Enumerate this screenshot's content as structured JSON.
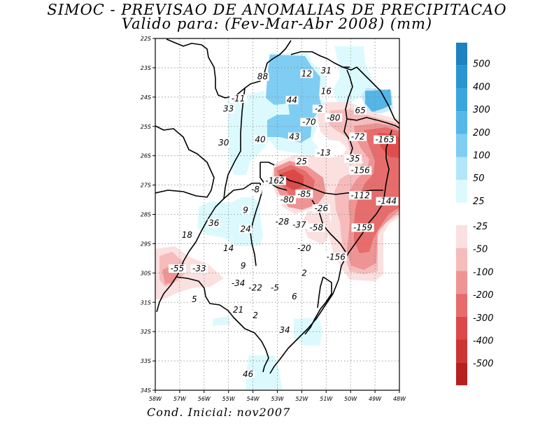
{
  "title": {
    "line1": "SIMOC - PREVISAO DE ANOMALIAS DE PRECIPITACAO",
    "line2": "Valido para: (Fev-Mar-Abr 2008) (mm)"
  },
  "footer": "Cond. Inicial: nov2007",
  "map": {
    "lat_labels": [
      "22S",
      "23S",
      "24S",
      "25S",
      "26S",
      "27S",
      "28S",
      "29S",
      "30S",
      "31S",
      "32S",
      "33S",
      "34S"
    ],
    "lon_labels": [
      "58W",
      "57W",
      "56W",
      "55W",
      "54W",
      "53W",
      "52W",
      "51W",
      "50W",
      "49W",
      "48W"
    ],
    "lat_range": [
      -34,
      -22
    ],
    "lon_range": [
      -58,
      -48
    ],
    "grid": "dotted"
  },
  "contour_labels": [
    {
      "text": "88",
      "lon": -53.6,
      "lat": -23.35
    },
    {
      "text": "12",
      "lon": -51.8,
      "lat": -23.25
    },
    {
      "text": "31",
      "lon": -51.0,
      "lat": -23.15
    },
    {
      "text": "16",
      "lon": -51.0,
      "lat": -23.85
    },
    {
      "text": "-11",
      "lon": -54.6,
      "lat": -24.1
    },
    {
      "text": "33",
      "lon": -55.0,
      "lat": -24.45
    },
    {
      "text": "44",
      "lon": -52.4,
      "lat": -24.15
    },
    {
      "text": "-2",
      "lon": -51.3,
      "lat": -24.45
    },
    {
      "text": "65",
      "lon": -49.6,
      "lat": -24.5
    },
    {
      "text": "-80",
      "lon": -50.7,
      "lat": -24.75
    },
    {
      "text": "-70",
      "lon": -51.7,
      "lat": -24.9
    },
    {
      "text": "-72",
      "lon": -49.7,
      "lat": -25.4
    },
    {
      "text": "-163",
      "lon": -48.6,
      "lat": -25.5
    },
    {
      "text": "30",
      "lon": -55.2,
      "lat": -25.6
    },
    {
      "text": "40",
      "lon": -53.7,
      "lat": -25.5
    },
    {
      "text": "43",
      "lon": -52.3,
      "lat": -25.4
    },
    {
      "text": "-13",
      "lon": -51.1,
      "lat": -25.95
    },
    {
      "text": "-35",
      "lon": -49.9,
      "lat": -26.15
    },
    {
      "text": "25",
      "lon": -52.0,
      "lat": -26.25
    },
    {
      "text": "-156",
      "lon": -49.6,
      "lat": -26.55
    },
    {
      "text": "-162",
      "lon": -53.1,
      "lat": -26.9
    },
    {
      "text": "-8",
      "lon": -53.9,
      "lat": -27.2
    },
    {
      "text": "-85",
      "lon": -51.9,
      "lat": -27.35
    },
    {
      "text": "-80",
      "lon": -52.6,
      "lat": -27.55
    },
    {
      "text": "-112",
      "lon": -49.6,
      "lat": -27.4
    },
    {
      "text": "-144",
      "lon": -48.5,
      "lat": -27.6
    },
    {
      "text": "9",
      "lon": -54.3,
      "lat": -27.9
    },
    {
      "text": "-26",
      "lon": -51.2,
      "lat": -27.85
    },
    {
      "text": "36",
      "lon": -55.6,
      "lat": -28.35
    },
    {
      "text": "24",
      "lon": -54.3,
      "lat": -28.55
    },
    {
      "text": "-28",
      "lon": -52.8,
      "lat": -28.3
    },
    {
      "text": "-37",
      "lon": -52.1,
      "lat": -28.4
    },
    {
      "text": "-58",
      "lon": -51.4,
      "lat": -28.5
    },
    {
      "text": "-159",
      "lon": -49.5,
      "lat": -28.5
    },
    {
      "text": "18",
      "lon": -56.7,
      "lat": -28.75
    },
    {
      "text": "14",
      "lon": -55.0,
      "lat": -29.2
    },
    {
      "text": "-20",
      "lon": -51.9,
      "lat": -29.2
    },
    {
      "text": "-156",
      "lon": -50.6,
      "lat": -29.5
    },
    {
      "text": "9",
      "lon": -54.4,
      "lat": -29.8
    },
    {
      "text": "-55",
      "lon": -57.1,
      "lat": -29.9
    },
    {
      "text": "-33",
      "lon": -56.2,
      "lat": -29.9
    },
    {
      "text": "2",
      "lon": -51.9,
      "lat": -30.05
    },
    {
      "text": "-34",
      "lon": -54.6,
      "lat": -30.4
    },
    {
      "text": "-22",
      "lon": -53.9,
      "lat": -30.55
    },
    {
      "text": "-5",
      "lon": -53.1,
      "lat": -30.55
    },
    {
      "text": "5",
      "lon": -56.4,
      "lat": -30.95
    },
    {
      "text": "6",
      "lon": -52.3,
      "lat": -30.85
    },
    {
      "text": "21",
      "lon": -54.6,
      "lat": -31.3
    },
    {
      "text": "2",
      "lon": -53.9,
      "lat": -31.5
    },
    {
      "text": "34",
      "lon": -52.7,
      "lat": -32.0
    },
    {
      "text": "46",
      "lon": -54.2,
      "lat": -33.5
    }
  ],
  "colorbar": {
    "positive": [
      {
        "label": "500",
        "color": "#1e82c0"
      },
      {
        "label": "400",
        "color": "#2996d2"
      },
      {
        "label": "300",
        "color": "#3aa6e0"
      },
      {
        "label": "200",
        "color": "#54b8ea"
      },
      {
        "label": "100",
        "color": "#80cdf3"
      },
      {
        "label": "50",
        "color": "#b2e6f8"
      },
      {
        "label": "25",
        "color": "#dcfafd"
      }
    ],
    "negative": [
      {
        "label": "-25",
        "color": "#fbe0e0"
      },
      {
        "label": "-50",
        "color": "#f6bcbc"
      },
      {
        "label": "-100",
        "color": "#ee9494"
      },
      {
        "label": "-200",
        "color": "#e76c6c"
      },
      {
        "label": "-300",
        "color": "#dd4848"
      },
      {
        "label": "-400",
        "color": "#cf3434"
      },
      {
        "label": "-500",
        "color": "#b81f1f"
      }
    ]
  }
}
